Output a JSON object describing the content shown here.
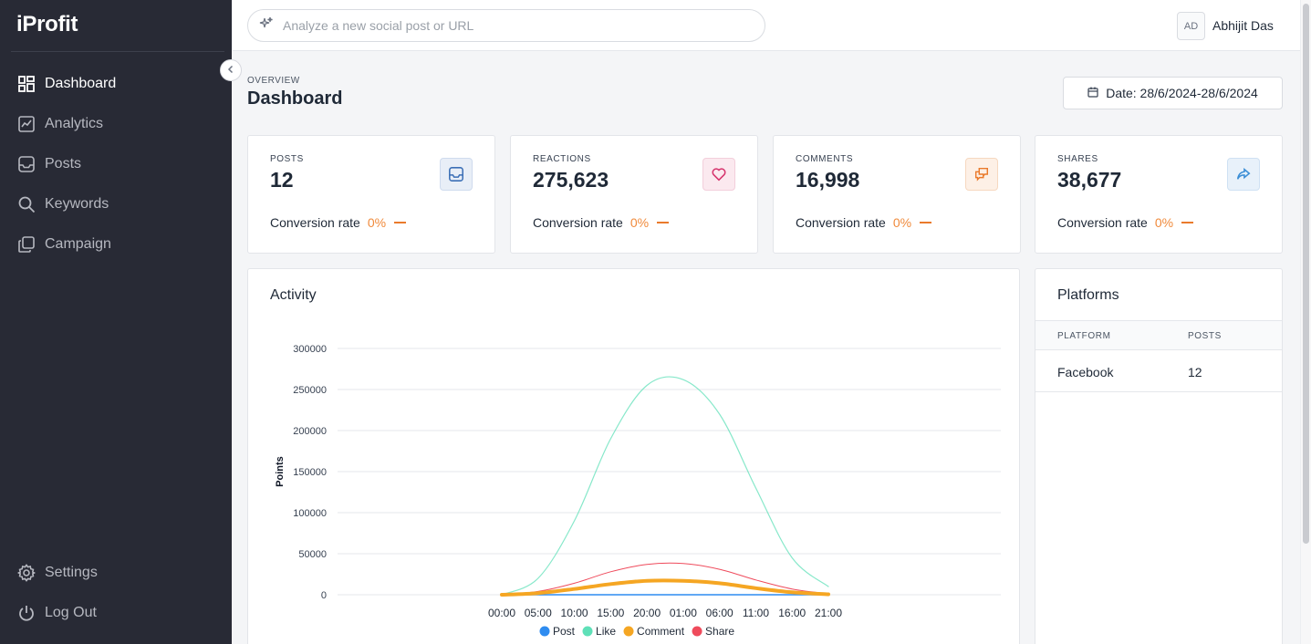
{
  "app": {
    "name": "iProfit"
  },
  "sidebar": {
    "items": [
      {
        "label": "Dashboard",
        "icon": "dashboard-icon",
        "active": true
      },
      {
        "label": "Analytics",
        "icon": "analytics-icon",
        "active": false
      },
      {
        "label": "Posts",
        "icon": "inbox-icon",
        "active": false
      },
      {
        "label": "Keywords",
        "icon": "search-icon",
        "active": false
      },
      {
        "label": "Campaign",
        "icon": "copy-icon",
        "active": false
      }
    ],
    "bottom": [
      {
        "label": "Settings",
        "icon": "gear-icon"
      },
      {
        "label": "Log Out",
        "icon": "power-icon"
      }
    ]
  },
  "topbar": {
    "search_placeholder": "Analyze a new social post or URL",
    "user_initials": "AD",
    "user_name": "Abhijit Das"
  },
  "header": {
    "overline": "OVERVIEW",
    "title": "Dashboard",
    "date_label": "Date: 28/6/2024-28/6/2024"
  },
  "stats": [
    {
      "label": "POSTS",
      "value": "12",
      "conv_label": "Conversion rate",
      "conv_rate": "0%",
      "icon": "inbox-icon",
      "icon_color": "#3b6fb6",
      "icon_bg": "#e8eef7"
    },
    {
      "label": "REACTIONS",
      "value": "275,623",
      "conv_label": "Conversion rate",
      "conv_rate": "0%",
      "icon": "heart-icon",
      "icon_color": "#d6336c",
      "icon_bg": "#fbe9ef"
    },
    {
      "label": "COMMENTS",
      "value": "16,998",
      "conv_label": "Conversion rate",
      "conv_rate": "0%",
      "icon": "chat-icon",
      "icon_color": "#ea7a2b",
      "icon_bg": "#fdf0e6"
    },
    {
      "label": "SHARES",
      "value": "38,677",
      "conv_label": "Conversion rate",
      "conv_rate": "0%",
      "icon": "share-icon",
      "icon_color": "#3b8ed6",
      "icon_bg": "#e8f1fa"
    }
  ],
  "activity": {
    "title": "Activity"
  },
  "chart_data": {
    "type": "line",
    "title": "",
    "xlabel": "",
    "ylabel": "Points",
    "ylim": [
      0,
      300000
    ],
    "yticks": [
      0,
      50000,
      100000,
      150000,
      200000,
      250000,
      300000
    ],
    "categories": [
      "00:00",
      "05:00",
      "10:00",
      "15:00",
      "20:00",
      "01:00",
      "06:00",
      "11:00",
      "16:00",
      "21:00"
    ],
    "legend_position": "bottom",
    "grid": true,
    "series": [
      {
        "name": "Post",
        "color": "#2f8cf0",
        "values": [
          12,
          12,
          12,
          12,
          12,
          12,
          12,
          12,
          12,
          12
        ]
      },
      {
        "name": "Like",
        "color": "#5fe0b8",
        "values": [
          0,
          20000,
          90000,
          190000,
          255000,
          262000,
          220000,
          130000,
          45000,
          10000
        ]
      },
      {
        "name": "Comment",
        "color": "#f5a623",
        "values": [
          0,
          2000,
          7000,
          13000,
          17000,
          17000,
          14000,
          8000,
          3000,
          500
        ]
      },
      {
        "name": "Share",
        "color": "#ef4b5c",
        "values": [
          0,
          4000,
          14000,
          28000,
          37000,
          38000,
          31000,
          18000,
          7000,
          1000
        ]
      }
    ]
  },
  "platforms": {
    "title": "Platforms",
    "columns": [
      "PLATFORM",
      "POSTS"
    ],
    "rows": [
      {
        "platform": "Facebook",
        "posts": "12"
      }
    ]
  }
}
